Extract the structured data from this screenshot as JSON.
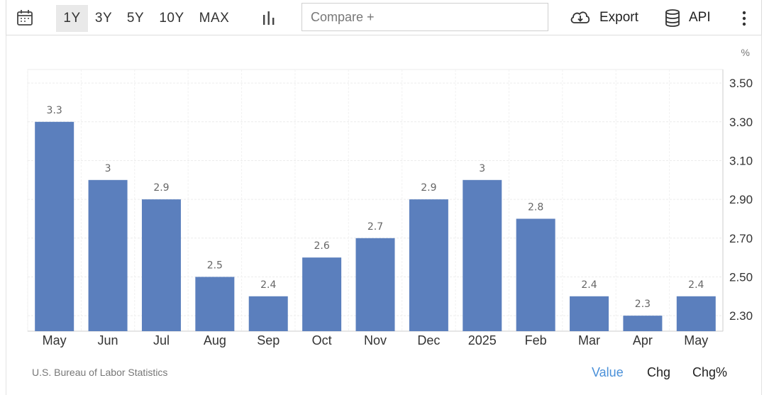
{
  "toolbar": {
    "ranges": [
      "1Y",
      "3Y",
      "5Y",
      "10Y",
      "MAX"
    ],
    "active_range": "1Y",
    "compare_placeholder": "Compare +",
    "export_label": "Export",
    "api_label": "API",
    "icons": [
      "calendar-icon",
      "bar-chart-icon",
      "cloud-download-icon",
      "database-icon",
      "more-vertical-icon"
    ]
  },
  "chart_data": {
    "type": "bar",
    "categories": [
      "May",
      "Jun",
      "Jul",
      "Aug",
      "Sep",
      "Oct",
      "Nov",
      "Dec",
      "2025",
      "Feb",
      "Mar",
      "Apr",
      "May"
    ],
    "values": [
      3.3,
      3.0,
      2.9,
      2.5,
      2.4,
      2.6,
      2.7,
      2.9,
      3.0,
      2.8,
      2.4,
      2.3,
      2.4
    ],
    "data_labels": [
      "3.3",
      "3",
      "2.9",
      "2.5",
      "2.4",
      "2.6",
      "2.7",
      "2.9",
      "3",
      "2.8",
      "2.4",
      "2.3",
      "2.4"
    ],
    "unit": "%",
    "yticks": [
      "3.50",
      "3.30",
      "3.10",
      "2.90",
      "2.70",
      "2.50",
      "2.30"
    ],
    "ylim": [
      2.2,
      3.55
    ],
    "y_axis_position": "right",
    "grid": true,
    "bar_color": "#5b7fbd"
  },
  "footer": {
    "source": "U.S. Bureau of Labor Statistics",
    "views": [
      "Value",
      "Chg",
      "Chg%"
    ],
    "active_view": "Value",
    "active_color": "#4a90d9"
  }
}
